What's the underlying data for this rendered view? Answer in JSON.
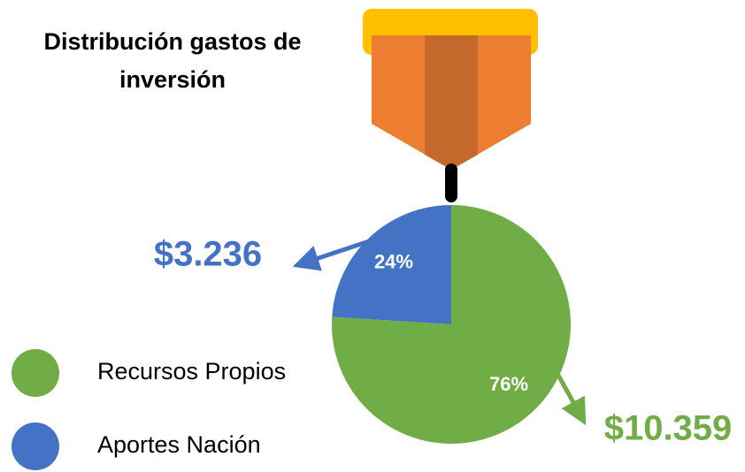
{
  "chart_data": {
    "type": "pie",
    "title": "Distribución gastos de inversión",
    "categories": [
      "Recursos Propios",
      "Aportes Nación"
    ],
    "values": [
      76,
      24
    ],
    "value_labels": [
      "76%",
      "24%"
    ],
    "colors": [
      "#70ad47",
      "#4472c4"
    ],
    "annotations": [
      "$10.359",
      "$3.236"
    ]
  }
}
